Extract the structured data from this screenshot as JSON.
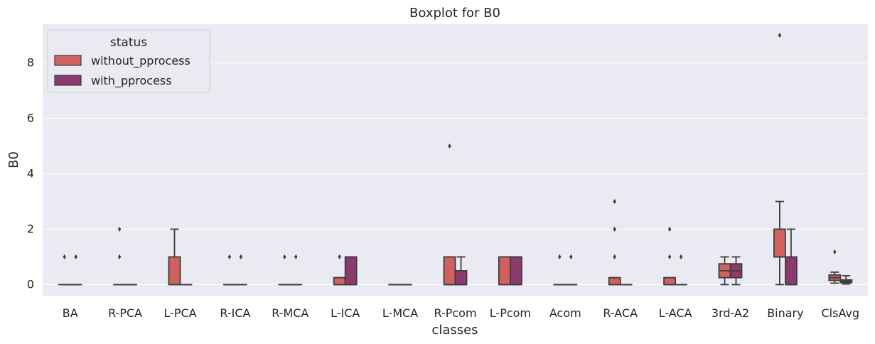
{
  "chart_data": {
    "type": "boxplot",
    "title": "Boxplot for B0",
    "xlabel": "classes",
    "ylabel": "B0",
    "ylim": [
      -0.4,
      9.4
    ],
    "yticks": [
      0,
      2,
      4,
      6,
      8
    ],
    "ytick_labels": [
      "0",
      "2",
      "4",
      "6",
      "8"
    ],
    "grid": true,
    "legend": {
      "title": "status",
      "placement": "top-left"
    },
    "categories": [
      "BA",
      "R-PCA",
      "L-PCA",
      "R-ICA",
      "R-MCA",
      "L-ICA",
      "L-MCA",
      "R-Pcom",
      "L-Pcom",
      "Acom",
      "R-ACA",
      "L-ACA",
      "3rd-A2",
      "Binary",
      "ClsAvg"
    ],
    "series": [
      {
        "name": "without_pprocess",
        "color": "#d1615d",
        "boxes": [
          {
            "whislo": 0,
            "q1": 0,
            "med": 0,
            "q3": 0,
            "whishi": 0,
            "fliers": [
              1
            ]
          },
          {
            "whislo": 0,
            "q1": 0,
            "med": 0,
            "q3": 0,
            "whishi": 0,
            "fliers": [
              1,
              2
            ]
          },
          {
            "whislo": 0,
            "q1": 0,
            "med": 0,
            "q3": 1,
            "whishi": 2,
            "fliers": []
          },
          {
            "whislo": 0,
            "q1": 0,
            "med": 0,
            "q3": 0,
            "whishi": 0,
            "fliers": [
              1
            ]
          },
          {
            "whislo": 0,
            "q1": 0,
            "med": 0,
            "q3": 0,
            "whishi": 0,
            "fliers": [
              1
            ]
          },
          {
            "whislo": 0,
            "q1": 0,
            "med": 0,
            "q3": 0.25,
            "whishi": 0.25,
            "fliers": [
              1
            ]
          },
          {
            "whislo": 0,
            "q1": 0,
            "med": 0,
            "q3": 0,
            "whishi": 0,
            "fliers": []
          },
          {
            "whislo": 0,
            "q1": 0,
            "med": 0,
            "q3": 1,
            "whishi": 1,
            "fliers": [
              5
            ]
          },
          {
            "whislo": 0,
            "q1": 0,
            "med": 0,
            "q3": 1,
            "whishi": 1,
            "fliers": []
          },
          {
            "whislo": 0,
            "q1": 0,
            "med": 0,
            "q3": 0,
            "whishi": 0,
            "fliers": [
              1
            ]
          },
          {
            "whislo": 0,
            "q1": 0,
            "med": 0,
            "q3": 0.25,
            "whishi": 0.25,
            "fliers": [
              1,
              2,
              3
            ]
          },
          {
            "whislo": 0,
            "q1": 0,
            "med": 0,
            "q3": 0.25,
            "whishi": 0.25,
            "fliers": [
              1,
              2
            ]
          },
          {
            "whislo": 0,
            "q1": 0.25,
            "med": 0.5,
            "q3": 0.75,
            "whishi": 1,
            "fliers": []
          },
          {
            "whislo": 0,
            "q1": 1,
            "med": 1,
            "q3": 2,
            "whishi": 3,
            "fliers": [
              9
            ]
          },
          {
            "whislo": 0.05,
            "q1": 0.15,
            "med": 0.25,
            "q3": 0.35,
            "whishi": 0.45,
            "fliers": [
              1.18
            ]
          }
        ]
      },
      {
        "name": "with_pprocess",
        "color": "#8a3a6e",
        "boxes": [
          {
            "whislo": 0,
            "q1": 0,
            "med": 0,
            "q3": 0,
            "whishi": 0,
            "fliers": [
              1
            ]
          },
          {
            "whislo": 0,
            "q1": 0,
            "med": 0,
            "q3": 0,
            "whishi": 0,
            "fliers": []
          },
          {
            "whislo": 0,
            "q1": 0,
            "med": 0,
            "q3": 0,
            "whishi": 0,
            "fliers": []
          },
          {
            "whislo": 0,
            "q1": 0,
            "med": 0,
            "q3": 0,
            "whishi": 0,
            "fliers": [
              1
            ]
          },
          {
            "whislo": 0,
            "q1": 0,
            "med": 0,
            "q3": 0,
            "whishi": 0,
            "fliers": [
              1
            ]
          },
          {
            "whislo": 0,
            "q1": 0,
            "med": 0,
            "q3": 1,
            "whishi": 1,
            "fliers": []
          },
          {
            "whislo": 0,
            "q1": 0,
            "med": 0,
            "q3": 0,
            "whishi": 0,
            "fliers": []
          },
          {
            "whislo": 0,
            "q1": 0,
            "med": 0,
            "q3": 0.5,
            "whishi": 1,
            "fliers": []
          },
          {
            "whislo": 0,
            "q1": 0,
            "med": 0,
            "q3": 1,
            "whishi": 1,
            "fliers": []
          },
          {
            "whislo": 0,
            "q1": 0,
            "med": 0,
            "q3": 0,
            "whishi": 0,
            "fliers": [
              1
            ]
          },
          {
            "whislo": 0,
            "q1": 0,
            "med": 0,
            "q3": 0,
            "whishi": 0,
            "fliers": []
          },
          {
            "whislo": 0,
            "q1": 0,
            "med": 0,
            "q3": 0,
            "whishi": 0,
            "fliers": [
              1
            ]
          },
          {
            "whislo": 0,
            "q1": 0.25,
            "med": 0.5,
            "q3": 0.75,
            "whishi": 1,
            "fliers": []
          },
          {
            "whislo": 0,
            "q1": 0,
            "med": 0,
            "q3": 1,
            "whishi": 2,
            "fliers": []
          },
          {
            "whislo": 0.02,
            "q1": 0.07,
            "med": 0.12,
            "q3": 0.17,
            "whishi": 0.32,
            "fliers": []
          }
        ]
      }
    ]
  }
}
